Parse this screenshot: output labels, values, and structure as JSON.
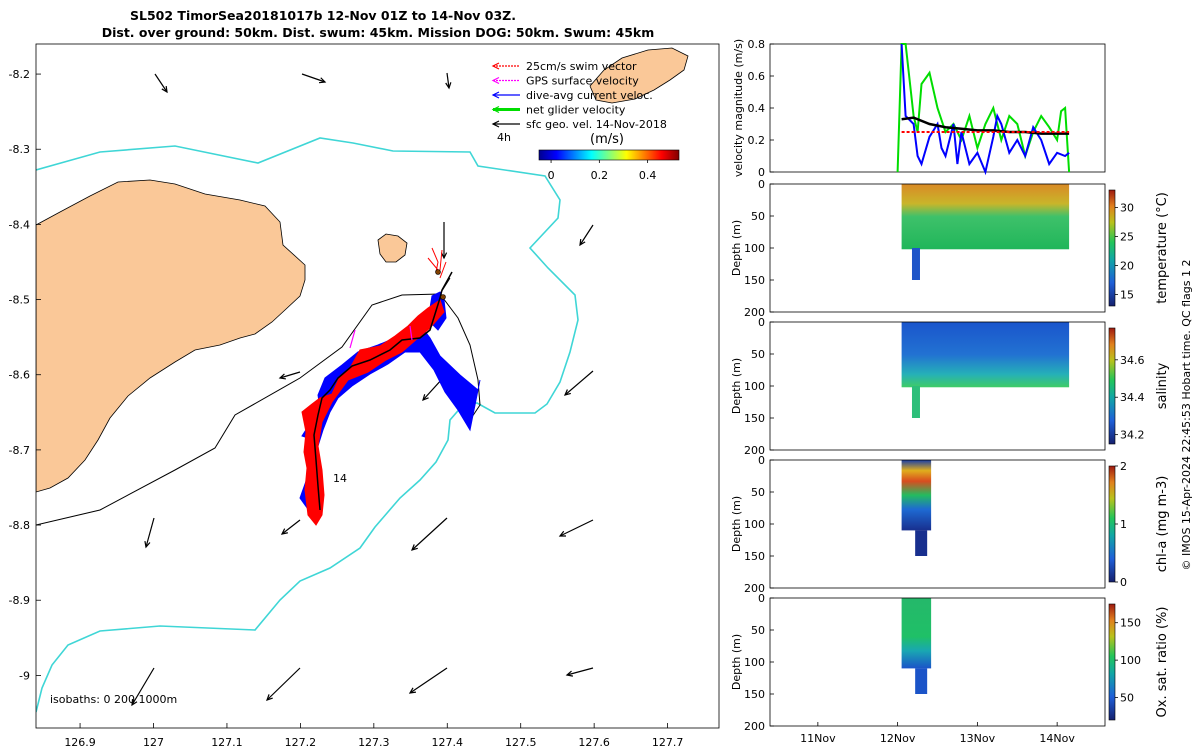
{
  "title": {
    "line1": "SL502 TimorSea20181017b 12-Nov 01Z to 14-Nov 03Z.",
    "line2": "Dist. over ground: 50km. Dist. swum: 45km. Mission DOG: 50km. Swum: 45km"
  },
  "map": {
    "x_ticks": [
      "126.9",
      "127",
      "127.1",
      "127.2",
      "127.3",
      "127.4",
      "127.5",
      "127.6",
      "127.7"
    ],
    "y_ticks": [
      "-8.2",
      "-8.3",
      "-8.4",
      "-8.5",
      "-8.6",
      "-8.7",
      "-8.8",
      "-8.9",
      "-9"
    ],
    "xlim": [
      126.84,
      127.77
    ],
    "ylim": [
      -9.07,
      -8.16
    ],
    "legend": [
      {
        "label": "25cm/s swim vector",
        "color": "#ff0000"
      },
      {
        "label": "GPS surface velocity",
        "color": "#ff00ff"
      },
      {
        "label": "dive-avg current veloc.",
        "color": "#0000ff"
      },
      {
        "label": "net glider velocity",
        "color": "#00dd00"
      },
      {
        "label": "sfc geo. vel. 14-Nov-2018",
        "color": "#000000"
      }
    ],
    "legend_note": "4h",
    "colorbar_label": "(m/s)",
    "colorbar_ticks": [
      "0",
      "0.2",
      "0.4"
    ],
    "colorbar_range": [
      -0.05,
      0.53
    ],
    "day_label": "14",
    "isobaths_label": "isobaths: 0   200  1000m"
  },
  "chart_data": [
    {
      "type": "line",
      "ylabel": "velocity magnitude (m/s)",
      "ylim": [
        0,
        0.8
      ],
      "y_ticks": [
        "0",
        "0.2",
        "0.4",
        "0.6",
        "0.8"
      ],
      "x_range_days": [
        10.4,
        14.6
      ],
      "series": [
        {
          "color": "#00dd00",
          "x": [
            12.0,
            12.05,
            12.1,
            12.2,
            12.25,
            12.3,
            12.4,
            12.5,
            12.6,
            12.7,
            12.8,
            12.9,
            13.0,
            13.1,
            13.2,
            13.3,
            13.4,
            13.5,
            13.6,
            13.7,
            13.8,
            13.9,
            14.0,
            14.05,
            14.1,
            14.15
          ],
          "y": [
            0,
            0.8,
            0.8,
            0.35,
            0.25,
            0.55,
            0.62,
            0.4,
            0.25,
            0.3,
            0.2,
            0.35,
            0.15,
            0.3,
            0.4,
            0.2,
            0.35,
            0.3,
            0.1,
            0.25,
            0.35,
            0.28,
            0.2,
            0.38,
            0.4,
            0
          ]
        },
        {
          "color": "#0000ff",
          "x": [
            12.05,
            12.1,
            12.2,
            12.25,
            12.3,
            12.4,
            12.5,
            12.55,
            12.6,
            12.7,
            12.75,
            12.8,
            12.9,
            13.0,
            13.1,
            13.2,
            13.25,
            13.3,
            13.4,
            13.5,
            13.6,
            13.7,
            13.8,
            13.9,
            14.0,
            14.1,
            14.15
          ],
          "y": [
            0.8,
            0.35,
            0.3,
            0.1,
            0.05,
            0.22,
            0.3,
            0.15,
            0.1,
            0.3,
            0.05,
            0.25,
            0.05,
            0.12,
            0.0,
            0.22,
            0.35,
            0.3,
            0.12,
            0.2,
            0.1,
            0.28,
            0.2,
            0.05,
            0.12,
            0.1,
            0.12
          ]
        },
        {
          "color": "#000000",
          "x": [
            12.05,
            12.2,
            12.4,
            12.6,
            12.8,
            13.0,
            13.2,
            13.4,
            13.6,
            13.8,
            14.0,
            14.15
          ],
          "y": [
            0.33,
            0.34,
            0.3,
            0.28,
            0.27,
            0.26,
            0.26,
            0.25,
            0.25,
            0.24,
            0.24,
            0.24
          ]
        },
        {
          "color": "#ff0000",
          "x": [
            12.05,
            12.4,
            12.8,
            13.2,
            13.6,
            14.0,
            14.15
          ],
          "y": [
            0.25,
            0.25,
            0.25,
            0.25,
            0.25,
            0.25,
            0.25
          ]
        }
      ]
    },
    {
      "type": "heatmap",
      "ylabel": "Depth (m)",
      "cbar_label": "temperature (°C)",
      "cbar_ticks": [
        "15",
        "20",
        "25",
        "30"
      ],
      "cbar_range": [
        13,
        33
      ],
      "depth_ticks": [
        "0",
        "50",
        "100",
        "150",
        "200"
      ]
    },
    {
      "type": "heatmap",
      "ylabel": "Depth (m)",
      "cbar_label": "salinity",
      "cbar_ticks": [
        "34.2",
        "34.4",
        "34.6"
      ],
      "cbar_range": [
        34.15,
        34.77
      ],
      "depth_ticks": [
        "0",
        "50",
        "100",
        "150",
        "200"
      ]
    },
    {
      "type": "heatmap",
      "ylabel": "Depth (m)",
      "cbar_label": "chl-a (mg m-3)",
      "cbar_ticks": [
        "0",
        "1",
        "2"
      ],
      "cbar_range": [
        0,
        2
      ],
      "depth_ticks": [
        "0",
        "50",
        "100",
        "150",
        "200"
      ]
    },
    {
      "type": "heatmap",
      "ylabel": "Depth (m)",
      "cbar_label": "Ox. sat. ratio (%)",
      "cbar_ticks": [
        "50",
        "100",
        "150"
      ],
      "cbar_range": [
        20,
        175
      ],
      "depth_ticks": [
        "0",
        "50",
        "100",
        "150",
        "200"
      ],
      "x_ticks": [
        "11Nov",
        "12Nov",
        "13Nov",
        "14Nov"
      ]
    }
  ],
  "footer": "© IMOS 15-Apr-2024 22:45:53 Hobart time. QC flags 1  2"
}
